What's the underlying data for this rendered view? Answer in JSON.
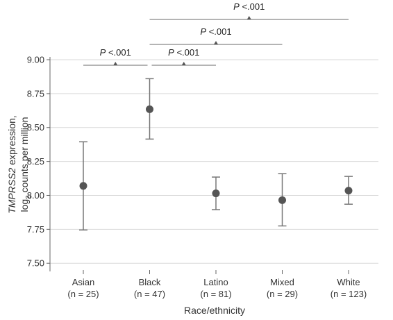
{
  "chart_data": {
    "type": "scatter",
    "xlabel": "Race/ethnicity",
    "ylabel": {
      "gene": "TMPRSS2",
      "text1": " expression,",
      "line2_prefix": "log",
      "line2_sub": "2",
      "line2_suffix": " counts per million"
    },
    "ylim": [
      7.45,
      9.0
    ],
    "yticks": [
      "7.50",
      "7.75",
      "8.00",
      "8.25",
      "8.50",
      "8.75",
      "9.00"
    ],
    "grid": true,
    "categories": [
      {
        "name": "Asian",
        "n": "(n = 25)"
      },
      {
        "name": "Black",
        "n": "(n = 47)"
      },
      {
        "name": "Latino",
        "n": "(n = 81)"
      },
      {
        "name": "Mixed",
        "n": "(n = 29)"
      },
      {
        "name": "White",
        "n": "(n = 123)"
      }
    ],
    "series": [
      {
        "values": [
          8.07,
          8.635,
          8.015,
          7.965,
          8.035
        ],
        "ci_low": [
          7.745,
          8.415,
          7.895,
          7.775,
          7.935
        ],
        "ci_high": [
          8.395,
          8.86,
          8.135,
          8.16,
          8.14
        ]
      }
    ],
    "comparisons": [
      {
        "from": "Asian",
        "to": "Black",
        "label_p": "P",
        "label_rest": " <.001"
      },
      {
        "from": "Black",
        "to": "Latino",
        "label_p": "P",
        "label_rest": " <.001"
      },
      {
        "from": "Black",
        "to": "Mixed",
        "label_p": "P",
        "label_rest": " <.001"
      },
      {
        "from": "Black",
        "to": "White",
        "label_p": "P",
        "label_rest": " <.001"
      }
    ],
    "colors": {
      "point": "#555555",
      "errorbar": "#777777",
      "grid": "#d9d9d9",
      "bracket": "#888888"
    }
  }
}
